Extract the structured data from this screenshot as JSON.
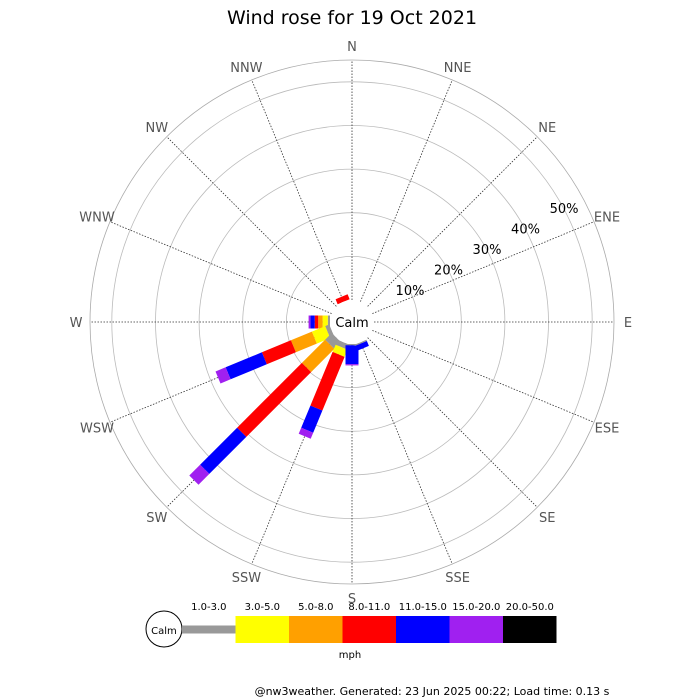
{
  "chart_data": {
    "type": "windrose",
    "title": "Wind rose for 19 Oct 2021",
    "directions": [
      "N",
      "NNE",
      "NE",
      "ENE",
      "E",
      "ESE",
      "SE",
      "SSE",
      "S",
      "SSW",
      "SW",
      "WSW",
      "W",
      "WNW",
      "NW",
      "NNW"
    ],
    "radial_ticks": [
      "10%",
      "20%",
      "30%",
      "40%",
      "50%"
    ],
    "radial_max": 55,
    "calm_label": "Calm",
    "speed_bins": [
      {
        "label": "1.0-3.0",
        "color": "#999999"
      },
      {
        "label": "3.0-5.0",
        "color": "#ffff00"
      },
      {
        "label": "5.0-8.0",
        "color": "#ffa000"
      },
      {
        "label": "8.0-11.0",
        "color": "#ff0000"
      },
      {
        "label": "11.0-15.0",
        "color": "#0000ff"
      },
      {
        "label": "15.0-20.0",
        "color": "#a020f0"
      },
      {
        "label": "20.0-50.0",
        "color": "#000000"
      }
    ],
    "speed_unit": "mph",
    "series": [
      {
        "direction": "NNW",
        "segments": [
          0,
          0,
          0,
          1.2,
          0,
          0,
          0
        ]
      },
      {
        "direction": "W",
        "segments": [
          0.5,
          1.2,
          1.0,
          0.8,
          1.0,
          0.4,
          0
        ]
      },
      {
        "direction": "WSW",
        "segments": [
          1.0,
          3.3,
          5.2,
          7.2,
          9.0,
          2.5,
          0
        ]
      },
      {
        "direction": "SW",
        "segments": [
          2.2,
          0,
          7.5,
          21.0,
          12.0,
          3.5,
          0
        ]
      },
      {
        "direction": "SSW",
        "segments": [
          1.2,
          1.8,
          0,
          13.3,
          5.5,
          1.5,
          0
        ]
      },
      {
        "direction": "S",
        "segments": [
          0.3,
          0,
          0,
          0,
          4.3,
          0.3,
          0
        ]
      },
      {
        "direction": "SSE",
        "segments": [
          0.3,
          0,
          0,
          0,
          1.2,
          0,
          0
        ]
      }
    ]
  },
  "footer": "@nw3weather. Generated: 23 Jun 2025 00:22; Load time: 0.13 s"
}
